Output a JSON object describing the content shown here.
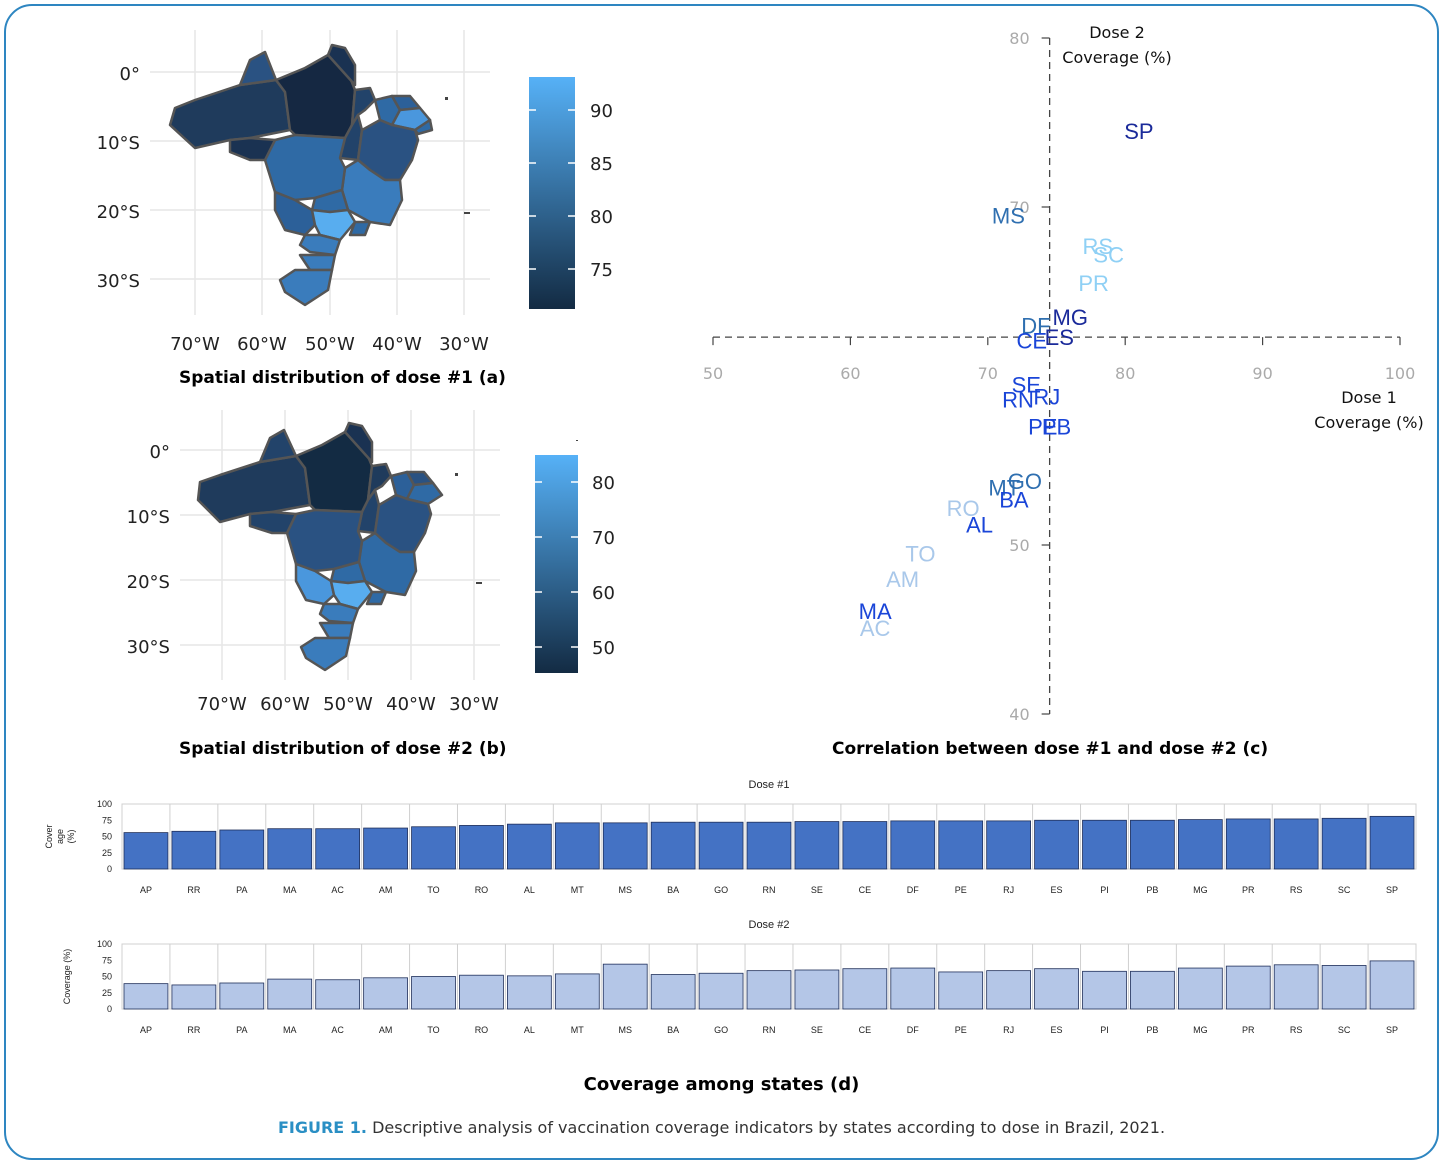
{
  "figure": {
    "caption_lead": "FIGURE 1.",
    "caption_text": " Descriptive analysis of vaccination coverage indicators by states according to dose in Brazil, 2021.",
    "bottom_title": "Coverage among states (d)"
  },
  "colors": {
    "frame": "#2e86c1",
    "bar1": "#4472c4",
    "bar2": "#b4c6e7",
    "caption_lead": "#2a8fc4"
  },
  "map_a": {
    "title": "Spatial distribution of dose #1 (a)",
    "lat_labels": [
      "0°",
      "10°S",
      "20°S",
      "30°S"
    ],
    "lon_labels": [
      "70°W",
      "60°W",
      "50°W",
      "40°W",
      "30°W"
    ],
    "legend_ticks": [
      "90",
      "85",
      "80",
      "75"
    ]
  },
  "map_b": {
    "title": "Spatial distribution of dose #2 (b)",
    "lat_labels": [
      "0°",
      "10°S",
      "20°S",
      "30°S"
    ],
    "lon_labels": [
      "70°W",
      "60°W",
      "50°W",
      "40°W",
      "30°W"
    ],
    "legend_ticks": [
      "80",
      "70",
      "60",
      "50"
    ]
  },
  "chart_data": [
    {
      "type": "scatter",
      "title": "Correlation between dose #1 and dose #2 (c)",
      "xlabel": "Dose 1 Coverage (%)",
      "xlabel_lines": [
        "Dose 1",
        "Coverage (%)"
      ],
      "ylabel": "Dose 2 Coverage (%)",
      "ylabel_lines": [
        "Dose 2",
        "Coverage (%)"
      ],
      "xlim": [
        50,
        100
      ],
      "ylim": [
        40,
        80
      ],
      "x_ticks": [
        "50",
        "60",
        "70",
        "80",
        "90",
        "100"
      ],
      "y_ticks": [
        "80",
        "70",
        "50",
        "40"
      ],
      "axes_cross": [
        74.5,
        62.3
      ],
      "points": [
        {
          "label": "SP",
          "x": 81,
          "y": 74.5,
          "color": "#1a2a9a"
        },
        {
          "label": "MS",
          "x": 71.5,
          "y": 69.5,
          "color": "#2f6fb0"
        },
        {
          "label": "RS",
          "x": 78,
          "y": 67.7,
          "color": "#8fd0f5"
        },
        {
          "label": "SC",
          "x": 78.8,
          "y": 67.2,
          "color": "#8fd0f5"
        },
        {
          "label": "PR",
          "x": 77.7,
          "y": 65.5,
          "color": "#8fd0f5"
        },
        {
          "label": "MG",
          "x": 76,
          "y": 63.5,
          "color": "#1a2a9a"
        },
        {
          "label": "DF",
          "x": 73.5,
          "y": 63.0,
          "color": "#2f6fb0"
        },
        {
          "label": "ES",
          "x": 75.2,
          "y": 62.3,
          "color": "#1a2a9a"
        },
        {
          "label": "CE",
          "x": 73.2,
          "y": 62.1,
          "color": "#1a45d8"
        },
        {
          "label": "SE",
          "x": 72.8,
          "y": 59.5,
          "color": "#1a45d8"
        },
        {
          "label": "RN",
          "x": 72.2,
          "y": 58.6,
          "color": "#1a45d8"
        },
        {
          "label": "RJ",
          "x": 74.3,
          "y": 58.8,
          "color": "#1a45d8"
        },
        {
          "label": "PE",
          "x": 74.0,
          "y": 57.0,
          "color": "#1a45d8"
        },
        {
          "label": "PB",
          "x": 75.0,
          "y": 57.0,
          "color": "#1a45d8"
        },
        {
          "label": "GO",
          "x": 72.7,
          "y": 53.8,
          "color": "#2f6fb0"
        },
        {
          "label": "MT",
          "x": 71.2,
          "y": 53.4,
          "color": "#2f6fb0"
        },
        {
          "label": "BA",
          "x": 71.9,
          "y": 52.7,
          "color": "#1a45d8"
        },
        {
          "label": "RO",
          "x": 68.2,
          "y": 52.2,
          "color": "#a9c8ea"
        },
        {
          "label": "AL",
          "x": 69.4,
          "y": 51.2,
          "color": "#1a45d8"
        },
        {
          "label": "TO",
          "x": 65.1,
          "y": 49.5,
          "color": "#a9c8ea"
        },
        {
          "label": "AM",
          "x": 63.8,
          "y": 48.0,
          "color": "#a9c8ea"
        },
        {
          "label": "MA",
          "x": 61.8,
          "y": 46.1,
          "color": "#1a45d8"
        },
        {
          "label": "AC",
          "x": 61.8,
          "y": 45.1,
          "color": "#a9c8ea"
        }
      ]
    },
    {
      "type": "bar",
      "title": "Dose #1",
      "ylabel": "Cover age (%)",
      "ylabel_lines": [
        "Cover",
        "age",
        "(%)"
      ],
      "ylim": [
        0,
        100
      ],
      "y_ticks": [
        "100",
        "75",
        "50",
        "25",
        "0"
      ],
      "categories": [
        "AP",
        "RR",
        "PA",
        "MA",
        "AC",
        "AM",
        "TO",
        "RO",
        "AL",
        "MT",
        "MS",
        "BA",
        "GO",
        "RN",
        "SE",
        "CE",
        "DF",
        "PE",
        "RJ",
        "ES",
        "PI",
        "PB",
        "MG",
        "PR",
        "RS",
        "SC",
        "SP"
      ],
      "values": [
        56,
        58,
        60,
        62,
        62,
        63,
        65,
        67,
        69,
        71,
        71,
        72,
        72,
        72,
        73,
        73,
        74,
        74,
        74,
        75,
        75,
        75,
        76,
        77,
        77,
        78,
        81
      ]
    },
    {
      "type": "bar",
      "title": "Dose #2",
      "ylabel": "Coverage (%)",
      "ylim": [
        0,
        100
      ],
      "y_ticks": [
        "100",
        "75",
        "50",
        "25",
        "0"
      ],
      "categories": [
        "AP",
        "RR",
        "PA",
        "MA",
        "AC",
        "AM",
        "TO",
        "RO",
        "AL",
        "MT",
        "MS",
        "BA",
        "GO",
        "RN",
        "SE",
        "CE",
        "DF",
        "PE",
        "RJ",
        "ES",
        "PI",
        "PB",
        "MG",
        "PR",
        "RS",
        "SC",
        "SP"
      ],
      "values": [
        39,
        37,
        40,
        46,
        45,
        48,
        50,
        52,
        51,
        54,
        69,
        53,
        55,
        59,
        60,
        62,
        63,
        57,
        59,
        62,
        58,
        58,
        63,
        66,
        68,
        67,
        74
      ]
    }
  ]
}
